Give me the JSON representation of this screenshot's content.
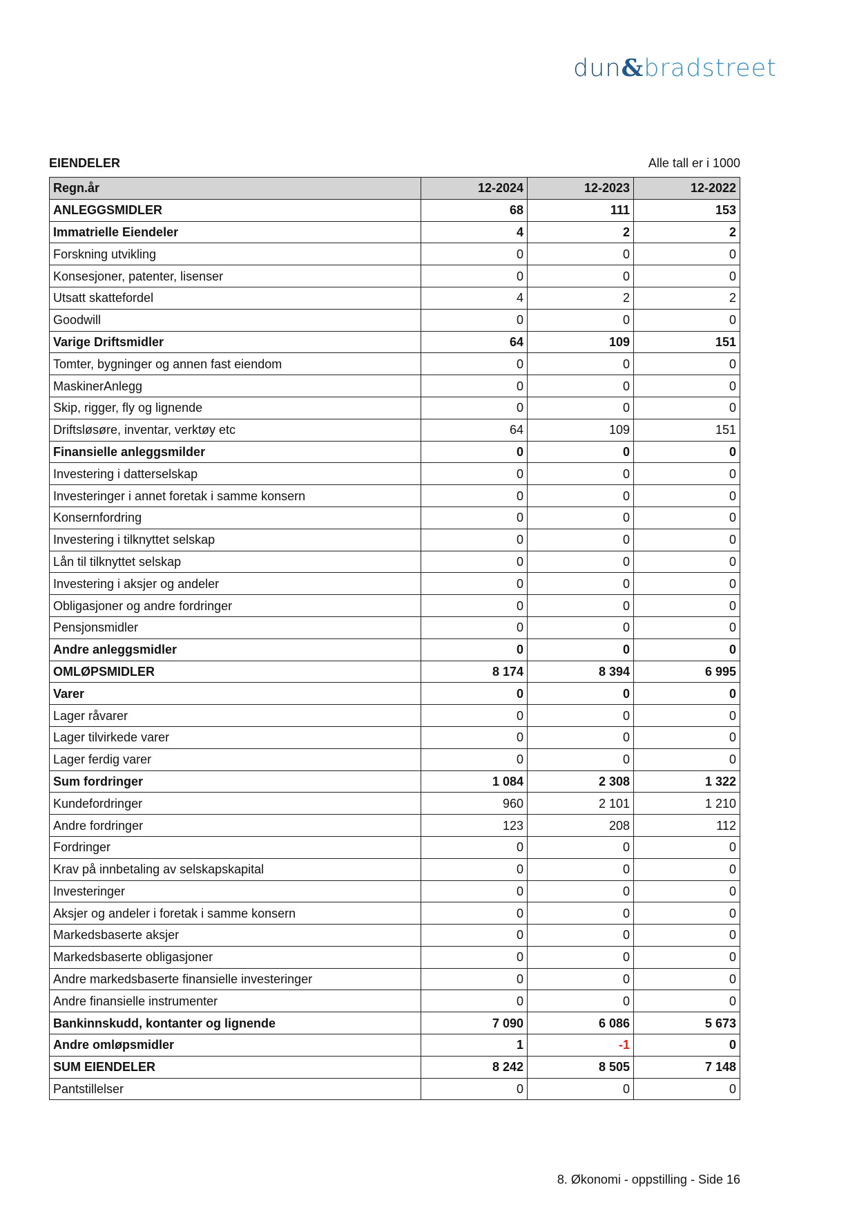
{
  "logo": {
    "part1": "dun",
    "amp": "&",
    "part2": "bradstreet"
  },
  "title": "EIENDELER",
  "unit_note": "Alle tall er i 1000",
  "table": {
    "headers": [
      "Regn.år",
      "12-2024",
      "12-2023",
      "12-2022"
    ],
    "rows": [
      {
        "label": "ANLEGGSMIDLER",
        "bold": true,
        "values": [
          "68",
          "111",
          "153"
        ]
      },
      {
        "label": "Immatrielle Eiendeler",
        "bold": true,
        "values": [
          "4",
          "2",
          "2"
        ]
      },
      {
        "label": "Forskning utvikling",
        "bold": false,
        "values": [
          "0",
          "0",
          "0"
        ]
      },
      {
        "label": "Konsesjoner, patenter, lisenser",
        "bold": false,
        "values": [
          "0",
          "0",
          "0"
        ]
      },
      {
        "label": "Utsatt skattefordel",
        "bold": false,
        "values": [
          "4",
          "2",
          "2"
        ]
      },
      {
        "label": "Goodwill",
        "bold": false,
        "values": [
          "0",
          "0",
          "0"
        ]
      },
      {
        "label": "Varige Driftsmidler",
        "bold": true,
        "values": [
          "64",
          "109",
          "151"
        ]
      },
      {
        "label": "Tomter, bygninger og annen fast eiendom",
        "bold": false,
        "values": [
          "0",
          "0",
          "0"
        ]
      },
      {
        "label": "MaskinerAnlegg",
        "bold": false,
        "values": [
          "0",
          "0",
          "0"
        ]
      },
      {
        "label": "Skip, rigger, fly og lignende",
        "bold": false,
        "values": [
          "0",
          "0",
          "0"
        ]
      },
      {
        "label": "Driftsløsøre, inventar, verktøy etc",
        "bold": false,
        "values": [
          "64",
          "109",
          "151"
        ]
      },
      {
        "label": "Finansielle anleggsmilder",
        "bold": true,
        "values": [
          "0",
          "0",
          "0"
        ]
      },
      {
        "label": "Investering i datterselskap",
        "bold": false,
        "values": [
          "0",
          "0",
          "0"
        ]
      },
      {
        "label": "Investeringer i annet foretak i samme konsern",
        "bold": false,
        "values": [
          "0",
          "0",
          "0"
        ]
      },
      {
        "label": "Konsernfordring",
        "bold": false,
        "values": [
          "0",
          "0",
          "0"
        ]
      },
      {
        "label": "Investering i tilknyttet selskap",
        "bold": false,
        "values": [
          "0",
          "0",
          "0"
        ]
      },
      {
        "label": "Lån til tilknyttet selskap",
        "bold": false,
        "values": [
          "0",
          "0",
          "0"
        ]
      },
      {
        "label": "Investering i aksjer og andeler",
        "bold": false,
        "values": [
          "0",
          "0",
          "0"
        ]
      },
      {
        "label": "Obligasjoner og andre fordringer",
        "bold": false,
        "values": [
          "0",
          "0",
          "0"
        ]
      },
      {
        "label": "Pensjonsmidler",
        "bold": false,
        "values": [
          "0",
          "0",
          "0"
        ]
      },
      {
        "label": "Andre anleggsmidler",
        "bold": true,
        "values": [
          "0",
          "0",
          "0"
        ]
      },
      {
        "label": "OMLØPSMIDLER",
        "bold": true,
        "values": [
          "8 174",
          "8 394",
          "6 995"
        ]
      },
      {
        "label": "Varer",
        "bold": true,
        "values": [
          "0",
          "0",
          "0"
        ]
      },
      {
        "label": "Lager råvarer",
        "bold": false,
        "values": [
          "0",
          "0",
          "0"
        ]
      },
      {
        "label": "Lager tilvirkede varer",
        "bold": false,
        "values": [
          "0",
          "0",
          "0"
        ]
      },
      {
        "label": "Lager ferdig varer",
        "bold": false,
        "values": [
          "0",
          "0",
          "0"
        ]
      },
      {
        "label": "Sum fordringer",
        "bold": true,
        "values": [
          "1 084",
          "2 308",
          "1 322"
        ]
      },
      {
        "label": "Kundefordringer",
        "bold": false,
        "values": [
          "960",
          "2 101",
          "1 210"
        ]
      },
      {
        "label": "Andre fordringer",
        "bold": false,
        "values": [
          "123",
          "208",
          "112"
        ]
      },
      {
        "label": "Fordringer",
        "bold": false,
        "values": [
          "0",
          "0",
          "0"
        ]
      },
      {
        "label": "Krav på innbetaling av selskapskapital",
        "bold": false,
        "values": [
          "0",
          "0",
          "0"
        ]
      },
      {
        "label": "Investeringer",
        "bold": false,
        "values": [
          "0",
          "0",
          "0"
        ]
      },
      {
        "label": "Aksjer og andeler i foretak i samme konsern",
        "bold": false,
        "values": [
          "0",
          "0",
          "0"
        ]
      },
      {
        "label": "Markedsbaserte aksjer",
        "bold": false,
        "values": [
          "0",
          "0",
          "0"
        ]
      },
      {
        "label": "Markedsbaserte obligasjoner",
        "bold": false,
        "values": [
          "0",
          "0",
          "0"
        ]
      },
      {
        "label": "Andre markedsbaserte finansielle investeringer",
        "bold": false,
        "values": [
          "0",
          "0",
          "0"
        ]
      },
      {
        "label": "Andre finansielle instrumenter",
        "bold": false,
        "values": [
          "0",
          "0",
          "0"
        ]
      },
      {
        "label": "Bankinnskudd, kontanter og lignende",
        "bold": true,
        "values": [
          "7 090",
          "6 086",
          "5 673"
        ]
      },
      {
        "label": "Andre omløpsmidler",
        "bold": true,
        "values": [
          "1",
          "-1",
          "0"
        ]
      },
      {
        "label": "SUM EIENDELER",
        "bold": true,
        "values": [
          "8 242",
          "8 505",
          "7 148"
        ]
      },
      {
        "label": "Pantstillelser",
        "bold": false,
        "values": [
          "0",
          "0",
          "0"
        ]
      }
    ]
  },
  "colors": {
    "negative": "#e0241b",
    "header_bg": "#d4d4d4"
  },
  "footer": "8. Økonomi - oppstilling - Side 16"
}
